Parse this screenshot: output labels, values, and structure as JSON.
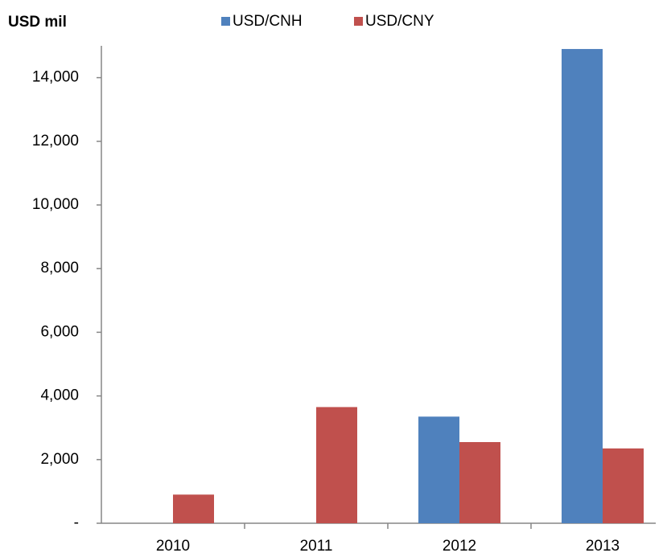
{
  "chart_data": {
    "type": "bar",
    "title": "USD mil",
    "categories": [
      "2010",
      "2011",
      "2012",
      "2013"
    ],
    "series": [
      {
        "name": "USD/CNH",
        "color": "#4f81bd",
        "values": [
          0,
          0,
          3350,
          14900
        ]
      },
      {
        "name": "USD/CNY",
        "color": "#c0504d",
        "values": [
          900,
          3650,
          2550,
          2350
        ]
      }
    ],
    "ylim": [
      0,
      15000
    ],
    "yticks": [
      {
        "value": 0,
        "label": "-"
      },
      {
        "value": 2000,
        "label": "2,000"
      },
      {
        "value": 4000,
        "label": "4,000"
      },
      {
        "value": 6000,
        "label": "6,000"
      },
      {
        "value": 8000,
        "label": "8,000"
      },
      {
        "value": 10000,
        "label": "10,000"
      },
      {
        "value": 12000,
        "label": "12,000"
      },
      {
        "value": 14000,
        "label": "14,000"
      }
    ],
    "legend": "top",
    "grid": false
  }
}
